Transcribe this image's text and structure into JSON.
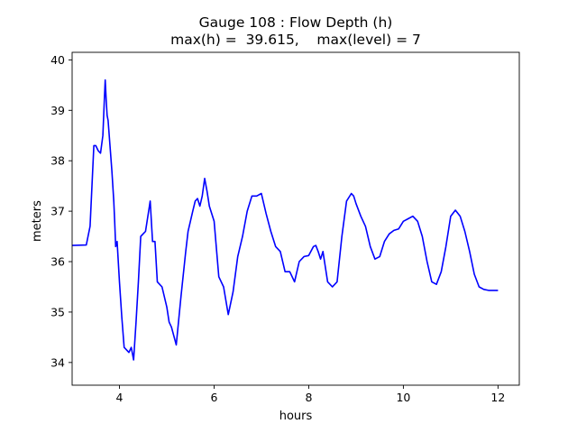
{
  "chart_data": {
    "type": "line",
    "title_line_1": "Gauge 108 : Flow Depth (h)",
    "title_line_2": "max(h) =  39.615,    max(level) = 7",
    "xlabel": "hours",
    "ylabel": "meters",
    "xlim": [
      3.0,
      12.45
    ],
    "ylim": [
      33.55,
      40.15
    ],
    "xticks": [
      4,
      6,
      8,
      10,
      12
    ],
    "yticks": [
      34,
      35,
      36,
      37,
      38,
      39,
      40
    ],
    "grid": false,
    "line_color": "#0000ff",
    "series": [
      {
        "x": [
          3.0,
          3.3,
          3.38,
          3.42,
          3.46,
          3.5,
          3.55,
          3.6,
          3.65,
          3.68,
          3.7,
          3.72,
          3.74,
          3.76,
          3.8,
          3.84,
          3.88,
          3.9,
          3.92,
          3.95,
          4.0,
          4.05,
          4.1,
          4.15,
          4.2,
          4.25,
          4.3,
          4.35,
          4.4,
          4.45,
          4.5,
          4.55,
          4.6,
          4.65,
          4.7,
          4.75,
          4.8,
          4.9,
          5.0,
          5.05,
          5.1,
          5.2,
          5.3,
          5.4,
          5.45,
          5.5,
          5.55,
          5.6,
          5.65,
          5.7,
          5.75,
          5.8,
          5.85,
          5.9,
          6.0,
          6.1,
          6.2,
          6.3,
          6.4,
          6.5,
          6.6,
          6.7,
          6.8,
          6.9,
          7.0,
          7.1,
          7.2,
          7.3,
          7.4,
          7.5,
          7.6,
          7.7,
          7.8,
          7.9,
          8.0,
          8.1,
          8.15,
          8.2,
          8.25,
          8.3,
          8.4,
          8.5,
          8.6,
          8.7,
          8.8,
          8.9,
          8.95,
          9.0,
          9.1,
          9.2,
          9.3,
          9.4,
          9.5,
          9.6,
          9.7,
          9.8,
          9.9,
          10.0,
          10.1,
          10.2,
          10.3,
          10.4,
          10.5,
          10.6,
          10.7,
          10.8,
          10.9,
          11.0,
          11.1,
          11.2,
          11.3,
          11.4,
          11.5,
          11.6,
          11.7,
          11.8,
          11.9,
          12.0
        ],
        "y": [
          36.32,
          36.33,
          36.7,
          37.5,
          38.3,
          38.3,
          38.2,
          38.15,
          38.5,
          39.2,
          39.6,
          39.2,
          38.9,
          38.8,
          38.3,
          37.8,
          37.2,
          36.8,
          36.3,
          36.4,
          35.6,
          34.9,
          34.3,
          34.25,
          34.2,
          34.3,
          34.05,
          34.8,
          35.6,
          36.5,
          36.55,
          36.6,
          36.9,
          37.2,
          36.4,
          36.4,
          35.6,
          35.5,
          35.1,
          34.8,
          34.7,
          34.35,
          35.3,
          36.2,
          36.6,
          36.8,
          37.0,
          37.2,
          37.25,
          37.1,
          37.3,
          37.65,
          37.4,
          37.1,
          36.8,
          35.7,
          35.5,
          34.95,
          35.4,
          36.1,
          36.5,
          37.0,
          37.3,
          37.3,
          37.35,
          36.95,
          36.6,
          36.3,
          36.2,
          35.8,
          35.8,
          35.6,
          36.0,
          36.1,
          36.12,
          36.3,
          36.32,
          36.2,
          36.05,
          36.2,
          35.6,
          35.5,
          35.6,
          36.5,
          37.2,
          37.35,
          37.3,
          37.15,
          36.9,
          36.7,
          36.3,
          36.05,
          36.1,
          36.4,
          36.55,
          36.62,
          36.65,
          36.8,
          36.85,
          36.9,
          36.8,
          36.5,
          36.0,
          35.6,
          35.55,
          35.8,
          36.3,
          36.9,
          37.02,
          36.9,
          36.6,
          36.2,
          35.75,
          35.5,
          35.45,
          35.43,
          35.43,
          35.43
        ]
      }
    ]
  }
}
